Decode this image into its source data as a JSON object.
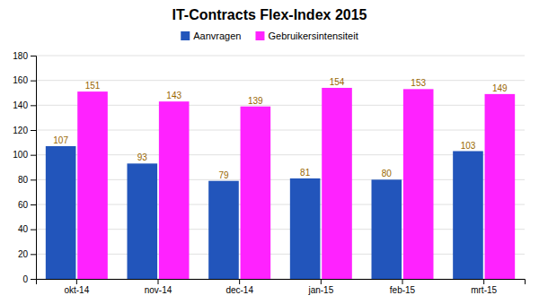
{
  "chart_data": {
    "type": "bar",
    "title": "IT-Contracts Flex-Index 2015",
    "categories": [
      "okt-14",
      "nov-14",
      "dec-14",
      "jan-15",
      "feb-15",
      "mrt-15"
    ],
    "series": [
      {
        "name": "Aanvragen",
        "color": "#2255BB",
        "values": [
          107,
          93,
          79,
          81,
          80,
          103
        ]
      },
      {
        "name": "Gebruikersintensiteit",
        "color": "#FF22FF",
        "values": [
          151,
          143,
          139,
          154,
          153,
          149
        ]
      }
    ],
    "ylim": [
      0,
      180
    ],
    "yticks": [
      0,
      20,
      40,
      60,
      80,
      100,
      120,
      140,
      160,
      180
    ],
    "grid": true,
    "legend": "top",
    "data_labels": true
  }
}
